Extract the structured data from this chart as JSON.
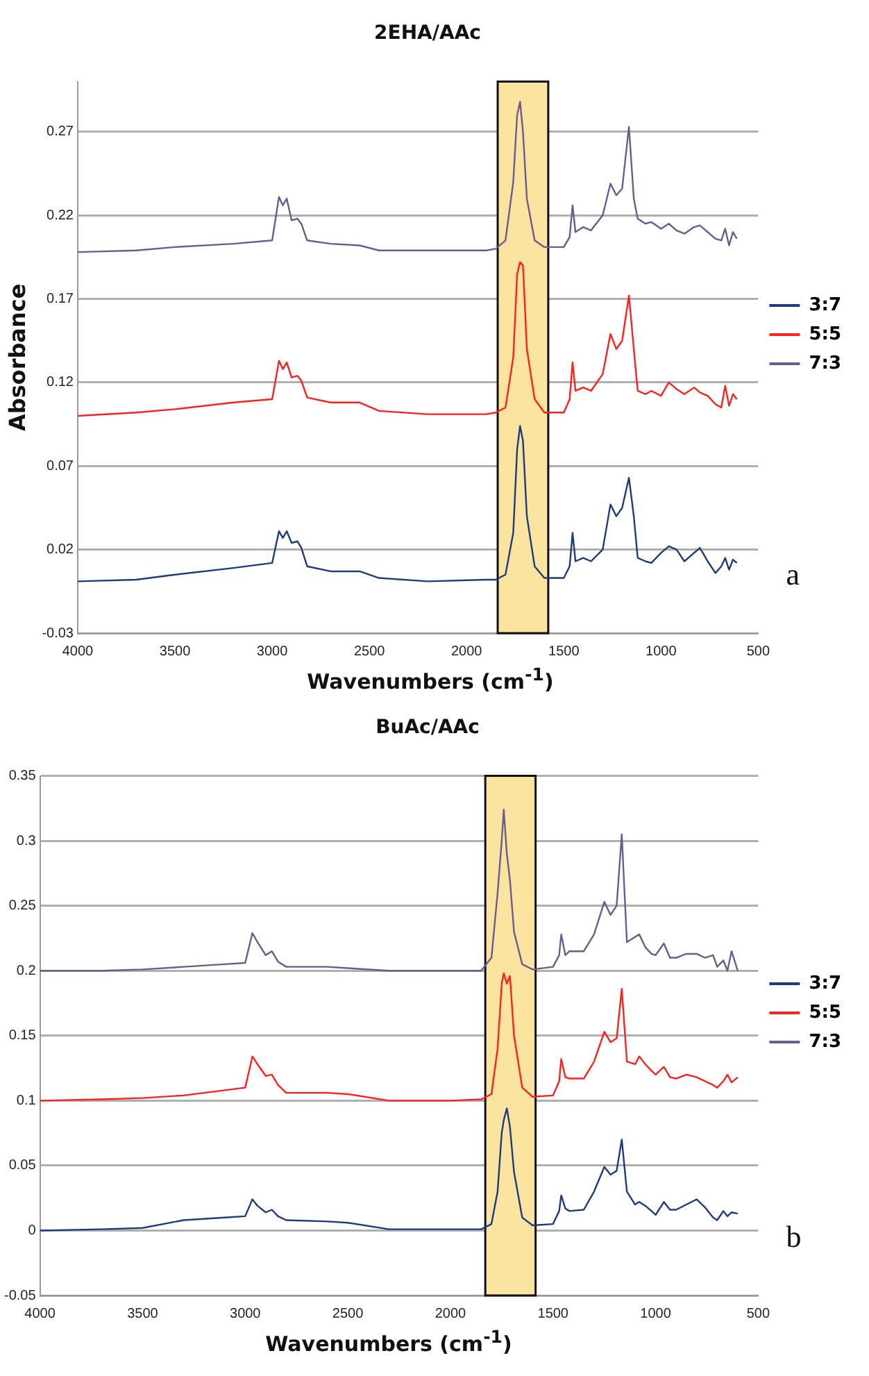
{
  "chart_data": [
    {
      "type": "line",
      "title": "2EHA/AAc",
      "xlabel": "Wavenumbers (cm$^{-1}$)",
      "ylabel": "Absorbance",
      "xlim": [
        4000,
        500
      ],
      "xticks": [
        4000,
        3500,
        3000,
        2500,
        2000,
        1500,
        1000,
        500
      ],
      "ylim": [
        -0.03,
        0.3
      ],
      "yticks": [
        -0.03,
        0.02,
        0.07,
        0.12,
        0.17,
        0.22,
        0.27
      ],
      "grid": "y",
      "legend": "right",
      "marker": "none",
      "line_style": "solid",
      "annotations": [
        "a"
      ],
      "bands": [
        {
          "axis": "x",
          "from": 1840,
          "to": 1580,
          "color": "#fbe3a0"
        }
      ],
      "x": [
        4000,
        3700,
        3500,
        3200,
        3000,
        2965,
        2945,
        2925,
        2900,
        2870,
        2850,
        2820,
        2700,
        2550,
        2450,
        2200,
        1900,
        1850,
        1800,
        1760,
        1740,
        1725,
        1710,
        1690,
        1650,
        1600,
        1500,
        1470,
        1455,
        1440,
        1400,
        1360,
        1300,
        1260,
        1230,
        1200,
        1165,
        1140,
        1120,
        1080,
        1050,
        1000,
        960,
        920,
        880,
        830,
        800,
        760,
        720,
        690,
        670,
        650,
        630,
        610
      ],
      "series": [
        {
          "name": "3:7",
          "color": "#1f3b7c",
          "values": [
            0.001,
            0.002,
            0.005,
            0.009,
            0.012,
            0.031,
            0.027,
            0.031,
            0.024,
            0.025,
            0.021,
            0.01,
            0.007,
            0.007,
            0.003,
            0.001,
            0.002,
            0.002,
            0.005,
            0.03,
            0.08,
            0.094,
            0.085,
            0.04,
            0.01,
            0.003,
            0.003,
            0.01,
            0.03,
            0.013,
            0.015,
            0.013,
            0.02,
            0.047,
            0.04,
            0.045,
            0.063,
            0.04,
            0.015,
            0.013,
            0.012,
            0.018,
            0.022,
            0.02,
            0.013,
            0.018,
            0.021,
            0.013,
            0.006,
            0.01,
            0.015,
            0.008,
            0.014,
            0.012
          ]
        },
        {
          "name": "5:5",
          "color": "#ff2020",
          "values": [
            0.1,
            0.102,
            0.104,
            0.108,
            0.11,
            0.133,
            0.128,
            0.132,
            0.123,
            0.124,
            0.121,
            0.111,
            0.108,
            0.108,
            0.103,
            0.101,
            0.101,
            0.102,
            0.105,
            0.135,
            0.185,
            0.192,
            0.19,
            0.14,
            0.11,
            0.102,
            0.102,
            0.11,
            0.132,
            0.115,
            0.117,
            0.115,
            0.125,
            0.149,
            0.14,
            0.145,
            0.172,
            0.14,
            0.115,
            0.113,
            0.115,
            0.112,
            0.12,
            0.116,
            0.113,
            0.117,
            0.114,
            0.112,
            0.107,
            0.105,
            0.118,
            0.106,
            0.113,
            0.11
          ]
        },
        {
          "name": "7:3",
          "color": "#6b5b8e",
          "values": [
            0.198,
            0.199,
            0.201,
            0.203,
            0.205,
            0.231,
            0.226,
            0.23,
            0.217,
            0.218,
            0.215,
            0.205,
            0.203,
            0.202,
            0.199,
            0.199,
            0.199,
            0.2,
            0.205,
            0.24,
            0.28,
            0.288,
            0.27,
            0.23,
            0.205,
            0.201,
            0.201,
            0.207,
            0.226,
            0.21,
            0.213,
            0.211,
            0.22,
            0.239,
            0.232,
            0.236,
            0.273,
            0.23,
            0.218,
            0.215,
            0.216,
            0.212,
            0.215,
            0.211,
            0.209,
            0.213,
            0.214,
            0.21,
            0.206,
            0.205,
            0.212,
            0.202,
            0.21,
            0.206
          ]
        }
      ]
    },
    {
      "type": "line",
      "title": "BuAc/AAc",
      "xlabel": "Wavenumbers (cm$^{-1}$)",
      "xlim": [
        4000,
        500
      ],
      "xticks": [
        4000,
        3500,
        3000,
        2500,
        2000,
        1500,
        1000,
        500
      ],
      "ylim": [
        -0.05,
        0.35
      ],
      "yticks": [
        -0.05,
        0,
        0.05,
        0.1,
        0.15,
        0.2,
        0.25,
        0.3,
        0.35
      ],
      "grid": "y",
      "legend": "right",
      "marker": "none",
      "line_style": "solid",
      "annotations": [
        "b"
      ],
      "bands": [
        {
          "axis": "x",
          "from": 1830,
          "to": 1585,
          "color": "#fbe3a0"
        }
      ],
      "x": [
        4000,
        3700,
        3500,
        3300,
        3100,
        3000,
        2965,
        2940,
        2900,
        2870,
        2840,
        2800,
        2600,
        2500,
        2300,
        2000,
        1850,
        1800,
        1770,
        1750,
        1740,
        1725,
        1710,
        1690,
        1650,
        1600,
        1500,
        1470,
        1460,
        1440,
        1420,
        1350,
        1300,
        1250,
        1220,
        1190,
        1165,
        1140,
        1100,
        1080,
        1050,
        1020,
        1000,
        960,
        930,
        900,
        850,
        800,
        760,
        720,
        700,
        670,
        650,
        630,
        600
      ],
      "series": [
        {
          "name": "3:7",
          "color": "#1f3b7c",
          "values": [
            0,
            0.001,
            0.002,
            0.008,
            0.01,
            0.011,
            0.024,
            0.019,
            0.014,
            0.016,
            0.011,
            0.008,
            0.007,
            0.006,
            0.001,
            0.001,
            0.001,
            0.005,
            0.03,
            0.075,
            0.085,
            0.094,
            0.08,
            0.045,
            0.01,
            0.004,
            0.005,
            0.015,
            0.027,
            0.017,
            0.015,
            0.016,
            0.03,
            0.049,
            0.043,
            0.046,
            0.07,
            0.03,
            0.02,
            0.022,
            0.019,
            0.015,
            0.012,
            0.022,
            0.016,
            0.016,
            0.02,
            0.024,
            0.018,
            0.01,
            0.008,
            0.015,
            0.011,
            0.014,
            0.013
          ]
        },
        {
          "name": "5:5",
          "color": "#ff2020",
          "values": [
            0.1,
            0.101,
            0.102,
            0.104,
            0.108,
            0.11,
            0.134,
            0.128,
            0.119,
            0.12,
            0.112,
            0.106,
            0.106,
            0.105,
            0.1,
            0.1,
            0.101,
            0.105,
            0.14,
            0.19,
            0.198,
            0.19,
            0.196,
            0.15,
            0.11,
            0.103,
            0.104,
            0.115,
            0.132,
            0.118,
            0.117,
            0.117,
            0.13,
            0.153,
            0.145,
            0.148,
            0.186,
            0.13,
            0.128,
            0.134,
            0.128,
            0.123,
            0.12,
            0.126,
            0.118,
            0.117,
            0.12,
            0.118,
            0.115,
            0.112,
            0.11,
            0.115,
            0.12,
            0.114,
            0.118
          ]
        },
        {
          "name": "7:3",
          "color": "#6b5b8e",
          "values": [
            0.2,
            0.2,
            0.201,
            0.203,
            0.205,
            0.206,
            0.229,
            0.222,
            0.212,
            0.215,
            0.207,
            0.203,
            0.203,
            0.202,
            0.2,
            0.2,
            0.2,
            0.21,
            0.26,
            0.3,
            0.324,
            0.29,
            0.27,
            0.23,
            0.205,
            0.201,
            0.203,
            0.212,
            0.228,
            0.212,
            0.215,
            0.215,
            0.228,
            0.253,
            0.243,
            0.25,
            0.305,
            0.222,
            0.226,
            0.228,
            0.218,
            0.213,
            0.212,
            0.221,
            0.21,
            0.21,
            0.213,
            0.213,
            0.21,
            0.212,
            0.203,
            0.208,
            0.2,
            0.215,
            0.2
          ]
        }
      ]
    }
  ]
}
